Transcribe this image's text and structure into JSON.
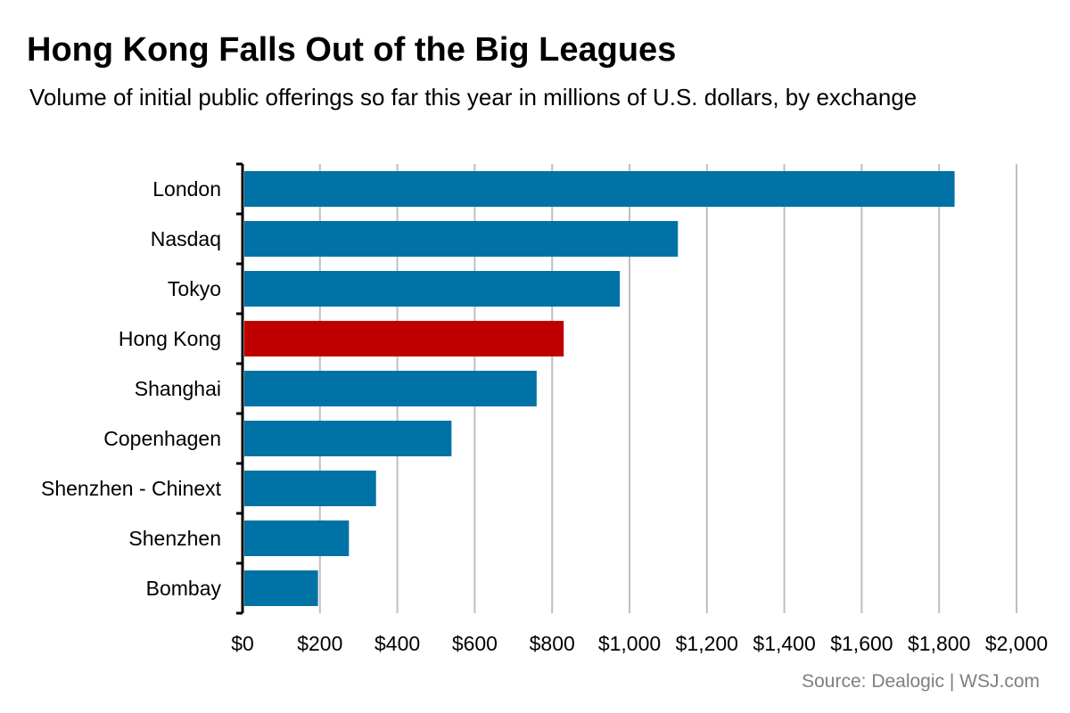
{
  "title": "Hong Kong Falls Out of the Big Leagues",
  "subtitle": "Volume of initial public offerings so far this year in millions of U.S. dollars, by exchange",
  "source": "Source: Dealogic  |  WSJ.com",
  "colors": {
    "bar": "#0072A6",
    "highlight": "#C00000",
    "grid": "#BFBFBF",
    "axis": "#000000",
    "source_text": "#7F7F7F"
  },
  "chart_data": {
    "type": "bar",
    "orientation": "horizontal",
    "title": "Hong Kong Falls Out of the Big Leagues",
    "subtitle": "Volume of initial public offerings so far this year in millions of U.S. dollars, by exchange",
    "categories": [
      "London",
      "Nasdaq",
      "Tokyo",
      "Hong Kong",
      "Shanghai",
      "Copenhagen",
      "Shenzhen - Chinext",
      "Shenzhen",
      "Bombay"
    ],
    "values": [
      1840,
      1125,
      975,
      830,
      760,
      540,
      345,
      275,
      195
    ],
    "highlight": "Hong Kong",
    "xlim": [
      0,
      2000
    ],
    "xticks": [
      0,
      200,
      400,
      600,
      800,
      1000,
      1200,
      1400,
      1600,
      1800,
      2000
    ],
    "xtick_labels": [
      "$0",
      "$200",
      "$400",
      "$600",
      "$800",
      "$1,000",
      "$1,200",
      "$1,400",
      "$1,600",
      "$1,800",
      "$2,000"
    ],
    "grid": "vertical",
    "legend": "none"
  }
}
